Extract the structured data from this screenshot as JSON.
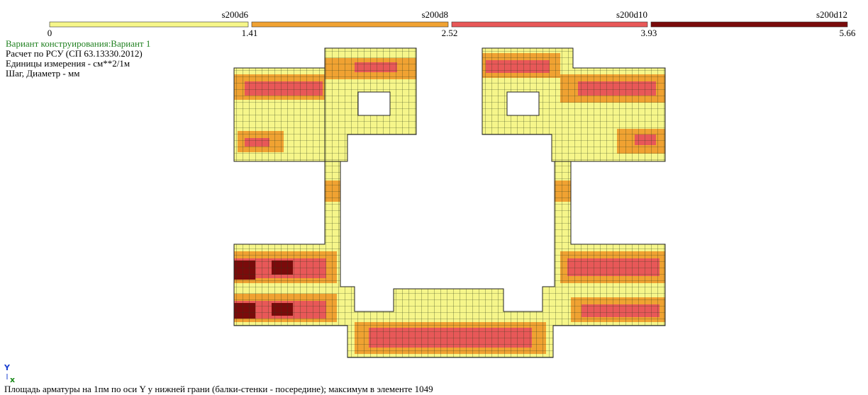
{
  "legend": {
    "segments": [
      {
        "label": "s200d6"
      },
      {
        "label": "s200d8"
      },
      {
        "label": "s200d10"
      },
      {
        "label": "s200d12"
      }
    ],
    "ticks": [
      "0",
      "1.41",
      "2.52",
      "3.93",
      "5.66"
    ]
  },
  "info": {
    "lines": [
      "Вариант конструирования:Вариант 1",
      "Расчет по РСУ (СП 63.13330.2012)",
      "Единицы измерения - см**2/1м",
      "Шаг, Диаметр - мм"
    ]
  },
  "axes": {
    "y": "Y",
    "x": "x"
  },
  "caption": "Площадь арматуры на 1пм по оси Y у нижней грани (балки-стенки - посередине); максимум в элементе 1049"
}
